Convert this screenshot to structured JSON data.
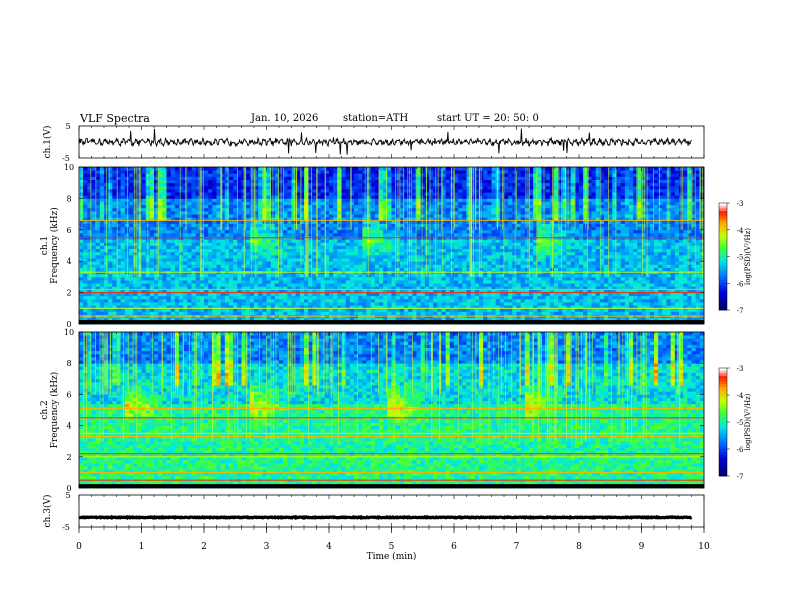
{
  "header": {
    "title": "VLF  Spectra",
    "date": "Jan. 10, 2026",
    "station": "station=ATH",
    "start": "start  UT  =   20: 50: 0"
  },
  "chart_data": [
    {
      "type": "line",
      "name": "ch1-waveform",
      "ylabel": "ch.1(V)",
      "yticks": [
        "5",
        "-5"
      ],
      "ylim": [
        -5,
        5
      ],
      "baseline": 0,
      "x_range_min": [
        0,
        9.8
      ]
    },
    {
      "type": "heatmap",
      "name": "ch1-spectrogram",
      "ylabel": "ch.1\nFrequency (kHz)",
      "ylabel_parts": [
        "ch.1",
        "Frequency (kHz)"
      ],
      "ylim": [
        0,
        10
      ],
      "yticks": [
        "0",
        "2",
        "4",
        "6",
        "8",
        "10"
      ],
      "colorbar": {
        "label": "log(PSD)(V²/Hz)",
        "ticks": [
          "-3",
          "-4",
          "-5",
          "-6",
          "-7"
        ],
        "range": [
          -7,
          -3
        ]
      },
      "strong_lines_khz": [
        0.2,
        0.5,
        1.0,
        2.0,
        2.2,
        3.3,
        5.5,
        6.6
      ],
      "tweek_times_min": [
        2.8,
        4.6,
        7.4
      ]
    },
    {
      "type": "heatmap",
      "name": "ch2-spectrogram",
      "ylabel": "ch.2\nFrequency (kHz)",
      "ylabel_parts": [
        "ch.2",
        "Frequency (kHz)"
      ],
      "ylim": [
        0,
        10
      ],
      "yticks": [
        "0",
        "2",
        "4",
        "6",
        "8",
        "10"
      ],
      "colorbar": {
        "label": "log(PSD)(V²/Hz)",
        "ticks": [
          "-3",
          "-4",
          "-5",
          "-6",
          "-7"
        ],
        "range": [
          -7,
          -3
        ]
      },
      "strong_lines_khz": [
        0.5,
        1.0,
        2.0,
        2.2,
        3.3,
        3.5,
        4.5,
        5.1
      ],
      "tweek_times_min": [
        0.8,
        2.8,
        5.0,
        7.2
      ]
    },
    {
      "type": "line",
      "name": "ch3-waveform",
      "ylabel": "ch.3(V)",
      "yticks": [
        "5",
        "-5"
      ],
      "ylim": [
        -5,
        5
      ],
      "baseline": -2,
      "x_range_min": [
        0,
        9.8
      ]
    }
  ],
  "xaxis": {
    "label": "Time  (min)",
    "ticks": [
      "0",
      "1",
      "2",
      "3",
      "4",
      "5",
      "6",
      "7",
      "8",
      "9",
      "10"
    ],
    "range": [
      0,
      10
    ]
  }
}
